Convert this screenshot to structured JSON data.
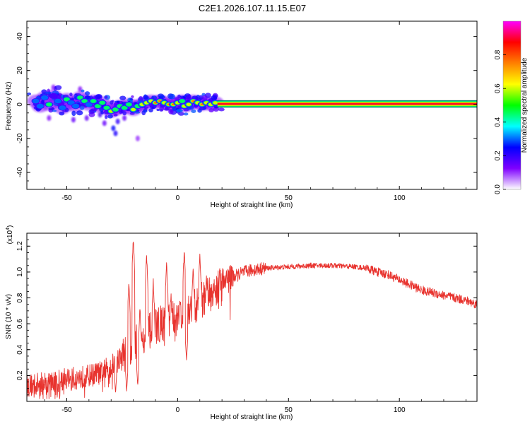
{
  "title": "C2E1.2026.107.11.15.E07",
  "chart_data": [
    {
      "type": "heatmap",
      "name": "spectrogram",
      "xlabel": "Height of straight line (km)",
      "ylabel": "Frequency (Hz)",
      "xlim": [
        -68,
        135
      ],
      "ylim": [
        -50,
        49
      ],
      "xticks": [
        -50,
        0,
        50,
        100
      ],
      "xtick_labels": [
        "-50",
        "0",
        "50",
        "100"
      ],
      "yticks": [
        -40,
        -20,
        0,
        20,
        40
      ],
      "ytick_labels": [
        "-40",
        "-20",
        "0",
        "20",
        "40"
      ],
      "colorbar": {
        "label": "Normalized spectral amplitude",
        "range": [
          0,
          1
        ],
        "ticks": [
          0.0,
          0.2,
          0.4,
          0.6,
          0.8
        ],
        "tick_labels": [
          "0.0",
          "0.2",
          "0.4",
          "0.6",
          "0.8"
        ],
        "colors": [
          "#ffffff",
          "#7f00ff",
          "#0000ff",
          "#00ffff",
          "#00ff00",
          "#ffff00",
          "#ff8000",
          "#ff0000",
          "#ff00ff"
        ]
      },
      "stable_band": {
        "x_start": 18,
        "x_end": 135,
        "freq_center": 0.3,
        "halfwidth": 2.0,
        "amplitude": 1.0
      },
      "blobs": [
        {
          "x": -64,
          "f": 2,
          "a": 0.3
        },
        {
          "x": -62,
          "f": -1,
          "a": 0.42
        },
        {
          "x": -60,
          "f": 4,
          "a": 0.35
        },
        {
          "x": -58,
          "f": 0,
          "a": 0.45
        },
        {
          "x": -56,
          "f": 5,
          "a": 0.28
        },
        {
          "x": -54,
          "f": 2,
          "a": 0.4
        },
        {
          "x": -52,
          "f": -2,
          "a": 0.33
        },
        {
          "x": -50,
          "f": 3,
          "a": 0.48
        },
        {
          "x": -48,
          "f": 1,
          "a": 0.38
        },
        {
          "x": -46,
          "f": -1,
          "a": 0.3
        },
        {
          "x": -44,
          "f": 4,
          "a": 0.45
        },
        {
          "x": -42,
          "f": 2,
          "a": 0.5
        },
        {
          "x": -40,
          "f": 0,
          "a": 0.42
        },
        {
          "x": -38,
          "f": 2,
          "a": 0.55
        },
        {
          "x": -36,
          "f": -1,
          "a": 0.45
        },
        {
          "x": -34,
          "f": 1,
          "a": 0.5
        },
        {
          "x": -32,
          "f": -2,
          "a": 0.55
        },
        {
          "x": -30,
          "f": -4,
          "a": 0.65
        },
        {
          "x": -28,
          "f": -3,
          "a": 0.45
        },
        {
          "x": -26,
          "f": -1,
          "a": 0.5
        },
        {
          "x": -24,
          "f": -2,
          "a": 0.55
        },
        {
          "x": -22,
          "f": 0,
          "a": 0.48
        },
        {
          "x": -20,
          "f": -3,
          "a": 0.6
        },
        {
          "x": -18,
          "f": -1,
          "a": 0.5
        },
        {
          "x": -16,
          "f": 0,
          "a": 0.6
        },
        {
          "x": -14,
          "f": 1,
          "a": 0.62
        },
        {
          "x": -12,
          "f": 2,
          "a": 0.65
        },
        {
          "x": -10,
          "f": 1,
          "a": 0.75
        },
        {
          "x": -8,
          "f": 2,
          "a": 0.8
        },
        {
          "x": -6,
          "f": 1,
          "a": 0.72
        },
        {
          "x": -4,
          "f": 0,
          "a": 0.8
        },
        {
          "x": -2,
          "f": 0,
          "a": 0.85
        },
        {
          "x": 0,
          "f": 1,
          "a": 0.7
        },
        {
          "x": 2,
          "f": 2,
          "a": 0.55
        },
        {
          "x": 3,
          "f": -1,
          "a": 0.6
        },
        {
          "x": 5,
          "f": 0,
          "a": 0.65
        },
        {
          "x": 7,
          "f": 2,
          "a": 0.8
        },
        {
          "x": 9,
          "f": 1,
          "a": 0.7
        },
        {
          "x": 11,
          "f": 0,
          "a": 0.75
        },
        {
          "x": 13,
          "f": 1,
          "a": 0.72
        },
        {
          "x": 15,
          "f": 0,
          "a": 0.65
        },
        {
          "x": 17,
          "f": 1,
          "a": 0.6
        }
      ],
      "scatter_traces": [
        {
          "x": -29,
          "f": -14,
          "a": 0.25
        },
        {
          "x": -28,
          "f": -17,
          "a": 0.22
        },
        {
          "x": -27,
          "f": -10,
          "a": 0.2
        },
        {
          "x": -41,
          "f": -8,
          "a": 0.15
        },
        {
          "x": -47,
          "f": -9,
          "a": 0.15
        },
        {
          "x": -18,
          "f": -20,
          "a": 0.1
        },
        {
          "x": -35,
          "f": -6,
          "a": 0.18
        },
        {
          "x": -56,
          "f": 10,
          "a": 0.12
        },
        {
          "x": -33,
          "f": -11,
          "a": 0.15
        },
        {
          "x": -24,
          "f": -8,
          "a": 0.15
        },
        {
          "x": -58,
          "f": -8,
          "a": 0.12
        },
        {
          "x": -44,
          "f": 9,
          "a": 0.12
        }
      ]
    },
    {
      "type": "line",
      "name": "snr",
      "xlabel": "Height of straight line (km)",
      "ylabel": "SNR (10 * v/v)",
      "y_multiplier_label": "(x10",
      "y_multiplier_exp": "4",
      "y_multiplier_close": ")",
      "xlim": [
        -68,
        135
      ],
      "ylim": [
        0,
        1.3
      ],
      "xticks": [
        -50,
        0,
        50,
        100
      ],
      "xtick_labels": [
        "-50",
        "0",
        "50",
        "100"
      ],
      "yticks": [
        0.2,
        0.4,
        0.6,
        0.8,
        1.0,
        1.2
      ],
      "ytick_labels": [
        "0.2",
        "0.4",
        "0.6",
        "0.8",
        "1.0",
        "1.2"
      ],
      "color": "#e8332e",
      "envelope": [
        {
          "x": -68,
          "y": 0.12
        },
        {
          "x": -60,
          "y": 0.14
        },
        {
          "x": -50,
          "y": 0.17
        },
        {
          "x": -42,
          "y": 0.19
        },
        {
          "x": -35,
          "y": 0.22
        },
        {
          "x": -30,
          "y": 0.27
        },
        {
          "x": -25,
          "y": 0.35
        },
        {
          "x": -21,
          "y": 0.42
        },
        {
          "x": -17,
          "y": 0.48
        },
        {
          "x": -12,
          "y": 0.55
        },
        {
          "x": -8,
          "y": 0.6
        },
        {
          "x": -4,
          "y": 0.64
        },
        {
          "x": 0,
          "y": 0.68
        },
        {
          "x": 5,
          "y": 0.7
        },
        {
          "x": 10,
          "y": 0.77
        },
        {
          "x": 15,
          "y": 0.84
        },
        {
          "x": 20,
          "y": 0.9
        },
        {
          "x": 25,
          "y": 0.96
        },
        {
          "x": 30,
          "y": 1.0
        },
        {
          "x": 35,
          "y": 1.02
        },
        {
          "x": 40,
          "y": 1.03
        },
        {
          "x": 50,
          "y": 1.04
        },
        {
          "x": 60,
          "y": 1.05
        },
        {
          "x": 70,
          "y": 1.05
        },
        {
          "x": 80,
          "y": 1.04
        },
        {
          "x": 85,
          "y": 1.03
        },
        {
          "x": 90,
          "y": 1.0
        },
        {
          "x": 95,
          "y": 0.98
        },
        {
          "x": 100,
          "y": 0.94
        },
        {
          "x": 105,
          "y": 0.9
        },
        {
          "x": 110,
          "y": 0.86
        },
        {
          "x": 115,
          "y": 0.84
        },
        {
          "x": 120,
          "y": 0.82
        },
        {
          "x": 125,
          "y": 0.8
        },
        {
          "x": 130,
          "y": 0.78
        },
        {
          "x": 135,
          "y": 0.75
        }
      ],
      "spikes": [
        {
          "x": -22,
          "y": 0.95
        },
        {
          "x": -20,
          "y": 1.28
        },
        {
          "x": -17,
          "y": 0.75
        },
        {
          "x": -14,
          "y": 1.15
        },
        {
          "x": -11,
          "y": 0.95
        },
        {
          "x": -5,
          "y": 1.1
        },
        {
          "x": -3,
          "y": 0.85
        },
        {
          "x": 3,
          "y": 1.2
        },
        {
          "x": 7,
          "y": 1.05
        },
        {
          "x": 10,
          "y": 1.16
        },
        {
          "x": 13,
          "y": 1.0
        },
        {
          "x": 22,
          "y": 1.05
        }
      ],
      "dips": [
        {
          "x": 4,
          "y": 0.32
        },
        {
          "x": -23,
          "y": 0.08
        },
        {
          "x": -28,
          "y": 0.06
        },
        {
          "x": -18,
          "y": 0.12
        }
      ]
    }
  ]
}
